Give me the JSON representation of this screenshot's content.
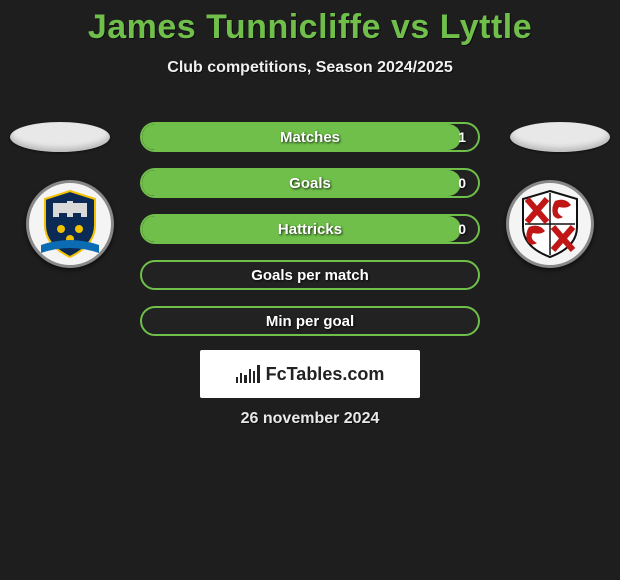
{
  "title": "James Tunnicliffe vs Lyttle",
  "subtitle": "Club competitions, Season 2024/2025",
  "date": "26 november 2024",
  "branding": {
    "label": "FcTables.com"
  },
  "colors": {
    "accent": "#6fbf4a",
    "background": "#1e1e1e",
    "pill_bg": "#222",
    "text": "#ffffff"
  },
  "stats": [
    {
      "label": "Matches",
      "value": "1",
      "fill_pct": 95
    },
    {
      "label": "Goals",
      "value": "0",
      "fill_pct": 95
    },
    {
      "label": "Hattricks",
      "value": "0",
      "fill_pct": 95
    },
    {
      "label": "Goals per match",
      "value": "",
      "fill_pct": 0
    },
    {
      "label": "Min per goal",
      "value": "",
      "fill_pct": 0
    }
  ],
  "crest_left": {
    "team_hint": "Stockport County style",
    "shield_bg": "#0b2a55",
    "accent": "#f2c200",
    "ribbon": "#0b6bb3",
    "detail": "#d9d9d9"
  },
  "crest_right": {
    "team_hint": "Lincoln City style",
    "shield_bg": "#ffffff",
    "stripes": "#c01616",
    "border": "#111111"
  }
}
